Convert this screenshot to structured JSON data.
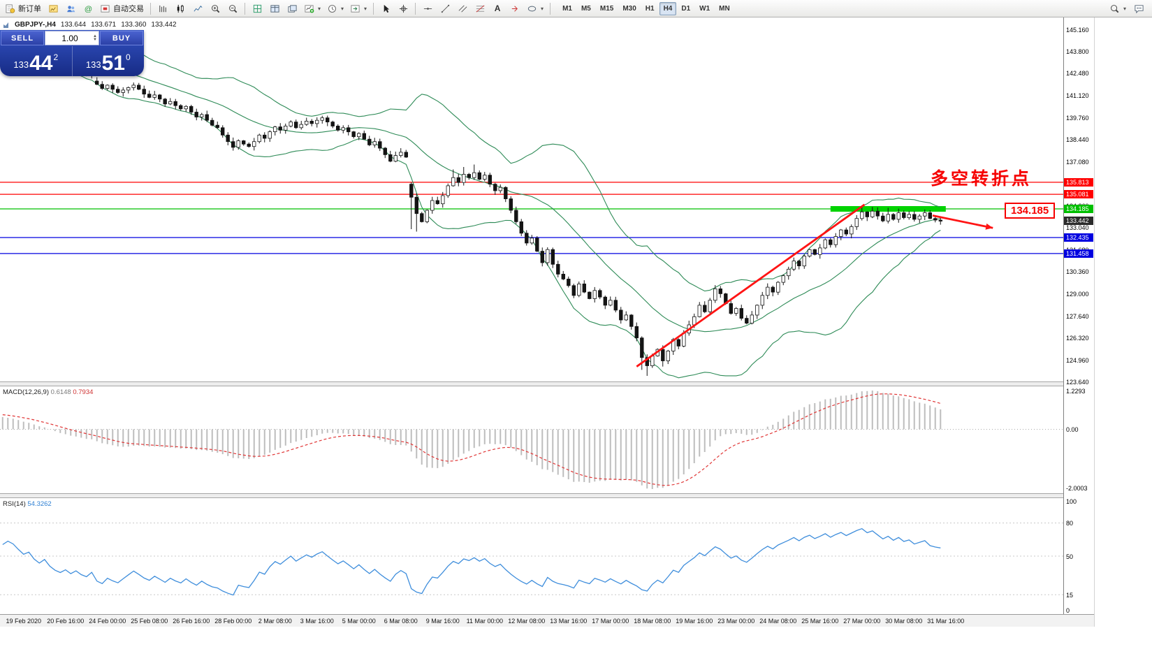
{
  "toolbar": {
    "new_order": "新订单",
    "autotrading": "自动交易",
    "text_tool": "A",
    "timeframes": [
      "M1",
      "M5",
      "M15",
      "M30",
      "H1",
      "H4",
      "D1",
      "W1",
      "MN"
    ],
    "active_timeframe": "H4"
  },
  "symbol_info": {
    "symbol": "GBPJPY-,H4",
    "open": "133.644",
    "high": "133.671",
    "low": "133.360",
    "close": "133.442"
  },
  "one_click": {
    "sell_label": "SELL",
    "buy_label": "BUY",
    "volume": "1.00",
    "bid_int": "133",
    "bid_big": "44",
    "bid_pip": "2",
    "ask_int": "133",
    "ask_big": "51",
    "ask_pip": "0"
  },
  "annotations": {
    "turning_point": "多空转折点",
    "callout": "134.185"
  },
  "chart_data": {
    "type": "candlestick",
    "symbol": "GBPJPY-",
    "timeframe": "H4",
    "colors": {
      "bollinger": "#2E8B57",
      "candle": "#141414",
      "macd_hist": "#bdbdbd",
      "macd_signal": "#e03636",
      "rsi_line": "#3f8edc",
      "level_green": "#00d300",
      "trend": "#ff1414"
    },
    "price_axis": [
      145.16,
      143.8,
      142.48,
      141.12,
      139.76,
      138.44,
      137.08,
      135.72,
      134.36,
      133.04,
      131.68,
      130.36,
      129.0,
      127.64,
      126.32,
      124.96,
      123.64
    ],
    "levels": [
      {
        "price": 135.813,
        "label": "135.813",
        "color": "#ff0000"
      },
      {
        "price": 135.081,
        "label": "135.081",
        "color": "#ff0000"
      },
      {
        "price": 134.185,
        "label": "134.185",
        "color": "#00c000"
      },
      {
        "price": 132.435,
        "label": "132.435",
        "color": "#0000e0"
      },
      {
        "price": 131.458,
        "label": "131.458",
        "color": "#0000e0"
      }
    ],
    "current_price": {
      "value": 133.442,
      "label": "133.442",
      "bg": "#2b2b2b"
    },
    "green_zone": {
      "price": 134.185,
      "from_index": 158,
      "to_index": 180
    },
    "trend_line": {
      "from": {
        "index": 121,
        "price": 124.55
      },
      "to": {
        "index": 164.5,
        "price": 134.45
      }
    },
    "arrow": {
      "from": {
        "index": 177.5,
        "price": 133.78
      },
      "to": {
        "index": 189,
        "price": 133.02
      }
    },
    "bollinger": {
      "period": 20,
      "deviation": 2
    },
    "pre_closes": [
      141.9,
      142.1,
      142.0,
      142.3,
      142.5,
      142.4,
      142.6,
      142.9,
      142.8,
      143.1,
      143.0,
      143.3,
      143.5,
      143.4,
      143.7,
      143.9,
      143.8,
      144.1,
      144.3,
      144.2,
      144.5,
      144.4,
      144.6,
      144.5,
      144.3,
      144.4,
      144.2,
      144.5,
      144.4,
      144.3
    ],
    "closes": [
      144.1,
      144.3,
      144.2,
      144.0,
      143.8,
      143.9,
      143.6,
      143.4,
      143.55,
      143.2,
      142.95,
      142.8,
      142.9,
      142.65,
      142.75,
      142.5,
      142.35,
      142.5,
      141.8,
      141.55,
      141.75,
      141.5,
      141.3,
      141.45,
      141.6,
      141.75,
      141.5,
      141.2,
      141.0,
      141.15,
      140.9,
      140.6,
      140.75,
      140.5,
      140.3,
      140.45,
      140.1,
      139.8,
      139.95,
      139.6,
      139.3,
      139.15,
      138.7,
      138.3,
      137.95,
      138.35,
      138.15,
      138.0,
      138.3,
      138.7,
      138.5,
      138.9,
      139.2,
      139.0,
      139.25,
      139.5,
      139.15,
      139.35,
      139.55,
      139.4,
      139.6,
      139.75,
      139.5,
      139.25,
      139.0,
      139.15,
      138.9,
      138.6,
      138.8,
      138.45,
      138.1,
      138.3,
      137.9,
      137.5,
      137.1,
      137.45,
      137.65,
      137.35,
      134.9,
      133.9,
      133.4,
      134.1,
      134.7,
      134.5,
      135.0,
      135.6,
      136.1,
      135.8,
      136.3,
      136.1,
      136.4,
      136.0,
      136.25,
      135.7,
      135.3,
      135.5,
      134.8,
      134.1,
      133.4,
      132.7,
      132.1,
      132.4,
      131.6,
      130.9,
      131.7,
      130.8,
      130.2,
      129.9,
      129.5,
      128.9,
      129.6,
      129.1,
      128.7,
      129.2,
      128.8,
      128.3,
      128.6,
      128.0,
      127.4,
      127.7,
      127.0,
      126.3,
      125.1,
      124.6,
      125.2,
      125.6,
      124.9,
      125.5,
      126.2,
      125.8,
      126.6,
      127.1,
      127.6,
      128.3,
      127.9,
      128.6,
      129.3,
      129.0,
      128.4,
      127.8,
      128.1,
      127.5,
      127.2,
      127.7,
      128.3,
      128.9,
      129.4,
      129.1,
      129.7,
      130.1,
      130.5,
      131.0,
      130.7,
      131.3,
      131.7,
      131.4,
      131.8,
      132.3,
      132.0,
      132.5,
      132.9,
      132.65,
      133.1,
      133.6,
      134.0,
      133.7,
      134.05,
      133.75,
      133.45,
      133.85,
      133.55,
      133.95,
      133.65,
      133.85,
      133.55,
      133.75,
      133.95,
      133.6,
      133.5,
      133.442
    ],
    "open_overrides": {
      "18": 142.0,
      "78": 135.7
    },
    "high_overrides": {
      "86": 136.6,
      "88": 136.75,
      "90": 136.9,
      "164": 134.35,
      "166": 134.3,
      "169": 134.25,
      "171": 134.2,
      "176": 134.15,
      "177": 134.1
    },
    "low_overrides": {
      "78": 132.95,
      "79": 132.8,
      "122": 124.35,
      "123": 123.98,
      "126": 124.55
    },
    "time_axis": {
      "first_index": 4,
      "step": 8,
      "labels": [
        "19 Feb 2020",
        "20 Feb 16:00",
        "24 Feb 00:00",
        "25 Feb 08:00",
        "26 Feb 16:00",
        "28 Feb 00:00",
        "2 Mar 08:00",
        "3 Mar 16:00",
        "5 Mar 00:00",
        "6 Mar 08:00",
        "9 Mar 16:00",
        "11 Mar 00:00",
        "12 Mar 08:00",
        "13 Mar 16:00",
        "17 Mar 00:00",
        "18 Mar 08:00",
        "19 Mar 16:00",
        "23 Mar 00:00",
        "24 Mar 08:00",
        "25 Mar 16:00",
        "27 Mar 00:00",
        "30 Mar 08:00",
        "31 Mar 16:00"
      ]
    },
    "macd": {
      "label": "MACD(12,26,9)",
      "values": [
        "0.6148",
        "0.7934"
      ],
      "axis": [
        "1.2293",
        "0.00",
        "-2.0003"
      ],
      "fast": 12,
      "slow": 26,
      "signal": 9
    },
    "rsi": {
      "label": "RSI(14)",
      "value": "54.3262",
      "period": 14,
      "axis": [
        "100",
        "80",
        "50",
        "15",
        "0"
      ],
      "levels": [
        80,
        50,
        15
      ]
    }
  }
}
